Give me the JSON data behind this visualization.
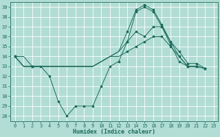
{
  "xlabel": "Humidex (Indice chaleur)",
  "background_color": "#b2ddd4",
  "grid_color": "#ffffff",
  "line_color": "#1a6b5a",
  "xlim": [
    -0.5,
    23.5
  ],
  "ylim": [
    27.5,
    39.5
  ],
  "yticks": [
    28,
    29,
    30,
    31,
    32,
    33,
    34,
    35,
    36,
    37,
    38,
    39
  ],
  "xticks": [
    0,
    1,
    2,
    3,
    4,
    5,
    6,
    7,
    8,
    9,
    10,
    11,
    12,
    13,
    14,
    15,
    16,
    17,
    18,
    19,
    20,
    21,
    22,
    23
  ],
  "series": [
    {
      "x": [
        0,
        1,
        2,
        3,
        4,
        5,
        6,
        7,
        8,
        9,
        10,
        11,
        12,
        13,
        14,
        15,
        16,
        17,
        18,
        19,
        20,
        21,
        22
      ],
      "y": [
        34,
        34,
        33,
        33,
        32,
        29.5,
        28,
        29,
        29,
        29,
        31,
        33,
        33.5,
        35.5,
        36.5,
        36,
        37,
        37,
        35.5,
        34,
        33,
        33,
        32.8
      ]
    },
    {
      "x": [
        0,
        1,
        2,
        3,
        4,
        5,
        6,
        7,
        8,
        9,
        10,
        11,
        12,
        13,
        14,
        15,
        16,
        17,
        18,
        19,
        20,
        21,
        22
      ],
      "y": [
        34,
        33,
        33,
        33,
        33,
        33,
        33,
        33,
        33,
        33,
        33.5,
        34,
        34,
        34.5,
        35,
        35.5,
        36,
        36,
        35,
        34,
        33,
        33,
        32.8
      ]
    },
    {
      "x": [
        0,
        1,
        2,
        3,
        4,
        5,
        6,
        7,
        8,
        9,
        10,
        11,
        12,
        13,
        14,
        15,
        16,
        17,
        18,
        19,
        20,
        21,
        22
      ],
      "y": [
        34,
        33,
        33,
        33,
        33,
        33,
        33,
        33,
        33,
        33,
        33.5,
        34,
        34.5,
        35.5,
        38.5,
        39,
        38.5,
        37,
        35.2,
        33.5,
        33,
        33,
        32.8
      ]
    },
    {
      "x": [
        0,
        1,
        2,
        3,
        4,
        5,
        6,
        7,
        8,
        9,
        10,
        11,
        12,
        13,
        14,
        15,
        16,
        17,
        18,
        19,
        20,
        21,
        22
      ],
      "y": [
        34,
        33,
        33,
        33,
        33,
        33,
        33,
        33,
        33,
        33,
        33.5,
        34,
        34.5,
        36.5,
        38.7,
        39.2,
        38.7,
        37.2,
        35.5,
        34.5,
        33.3,
        33.3,
        32.8
      ]
    }
  ],
  "marker_series": [
    {
      "x": [
        0,
        2,
        3,
        4,
        5,
        6,
        7,
        8,
        9,
        10,
        11,
        12,
        13,
        14,
        15,
        16,
        17,
        18,
        19,
        20,
        21,
        22
      ],
      "y": [
        34,
        33,
        33,
        32,
        29.5,
        28,
        29,
        29,
        29,
        31,
        33,
        33.5,
        35.5,
        36.5,
        36,
        37,
        37,
        35.5,
        34,
        33,
        33,
        32.8
      ]
    },
    {
      "x": [
        0,
        2,
        13,
        14,
        15,
        16,
        17,
        18,
        19,
        20,
        21,
        22
      ],
      "y": [
        34,
        33,
        34.5,
        35,
        35.5,
        36,
        36,
        35,
        34,
        33,
        33,
        32.8
      ]
    },
    {
      "x": [
        0,
        2,
        13,
        14,
        15,
        16,
        17,
        18,
        19,
        20,
        21,
        22
      ],
      "y": [
        34,
        33,
        35.5,
        38.5,
        39,
        38.5,
        37,
        35.2,
        33.5,
        33,
        33,
        32.8
      ]
    },
    {
      "x": [
        0,
        2,
        13,
        14,
        15,
        16,
        17,
        18,
        19,
        20,
        21,
        22
      ],
      "y": [
        34,
        33,
        36.5,
        38.7,
        39.2,
        38.7,
        37.2,
        35.5,
        34.5,
        33.3,
        33.3,
        32.8
      ]
    }
  ]
}
